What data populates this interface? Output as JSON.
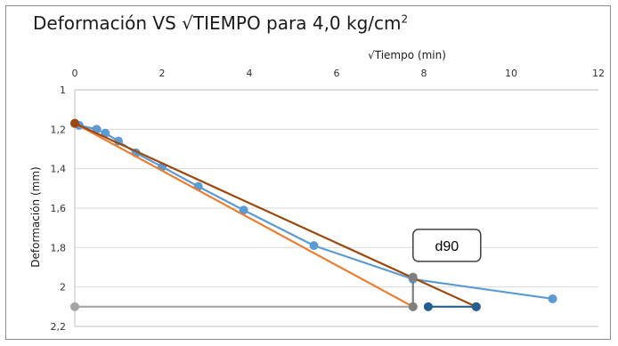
{
  "chart_data": {
    "type": "scatter",
    "title": "Deformación VS √TIEMPO para 4,0 kg/cm",
    "title_superscript": "2",
    "xlabel": "√Tiempo (min)",
    "ylabel": "Deformación (mm)",
    "xlim": [
      0,
      12
    ],
    "ylim": [
      1,
      2.2
    ],
    "y_inverted": true,
    "x_axis_position": "top",
    "grid": "horizontal",
    "x_ticks": [
      "0",
      "2",
      "4",
      "6",
      "8",
      "10",
      "12"
    ],
    "y_ticks": [
      "1",
      "1,2",
      "1,4",
      "1,6",
      "1,8",
      "2",
      "2,2"
    ],
    "series": [
      {
        "color": "#5b9bd5",
        "style": "line-marker",
        "x": [
          0,
          0.1,
          0.5,
          0.7,
          1.0,
          1.4,
          2.0,
          2.83,
          3.87,
          5.48,
          7.75,
          10.95
        ],
        "y": [
          1.17,
          1.18,
          1.2,
          1.22,
          1.26,
          1.32,
          1.39,
          1.49,
          1.61,
          1.79,
          1.96,
          2.06
        ]
      },
      {
        "color": "#ed7d31",
        "style": "line",
        "x": [
          0,
          7.75
        ],
        "y": [
          1.17,
          2.1
        ]
      },
      {
        "color": "#9e480e",
        "style": "line-marker",
        "x": [
          0,
          9.2
        ],
        "y": [
          1.17,
          2.1
        ]
      },
      {
        "color": "#a5a5a5",
        "style": "line-marker",
        "x": [
          0,
          7.75
        ],
        "y": [
          2.1,
          2.1
        ]
      },
      {
        "color": "#255e91",
        "style": "line-marker",
        "x": [
          8.1,
          9.2
        ],
        "y": [
          2.1,
          2.1
        ]
      },
      {
        "color": "#7f7f7f",
        "style": "line-marker",
        "x": [
          7.75,
          7.75
        ],
        "y": [
          1.95,
          2.1
        ]
      }
    ],
    "annotations": [
      {
        "text": "d90",
        "x": 8.2,
        "y": 1.78
      }
    ]
  }
}
